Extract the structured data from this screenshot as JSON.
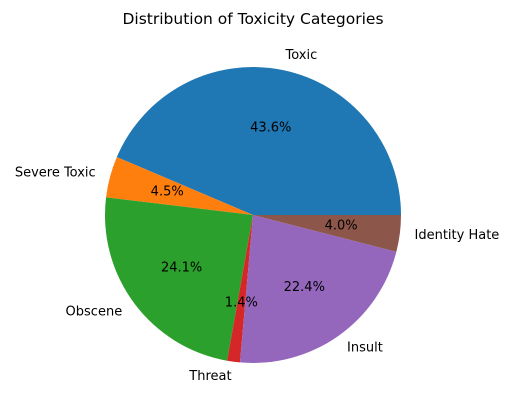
{
  "chart_data": {
    "type": "pie",
    "title": "Distribution of Toxicity Categories",
    "start_angle_deg": 0,
    "direction": "counterclockwise",
    "slices": [
      {
        "label": "Toxic",
        "value": 43.6,
        "pct_label": "43.6%",
        "color": "#1f77b4"
      },
      {
        "label": "Severe Toxic",
        "value": 4.5,
        "pct_label": "4.5%",
        "color": "#ff7f0e"
      },
      {
        "label": "Obscene",
        "value": 24.1,
        "pct_label": "24.1%",
        "color": "#2ca02c"
      },
      {
        "label": "Threat",
        "value": 1.4,
        "pct_label": "1.4%",
        "color": "#d62728"
      },
      {
        "label": "Insult",
        "value": 22.4,
        "pct_label": "22.4%",
        "color": "#9467bd"
      },
      {
        "label": "Identity Hate",
        "value": 4.0,
        "pct_label": "4.0%",
        "color": "#8c564b"
      }
    ]
  }
}
